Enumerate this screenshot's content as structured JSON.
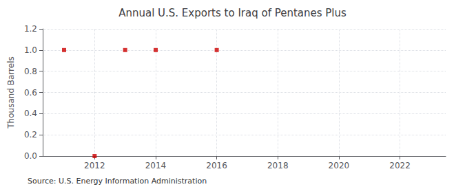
{
  "chart_data": {
    "type": "scatter",
    "title": "Annual U.S. Exports to Iraq of Pentanes Plus",
    "ylabel": "Thousand Barrels",
    "annotation": "Source: U.S. Energy Information Administration",
    "x": [
      2011,
      2012,
      2013,
      2014,
      2016
    ],
    "values": [
      1.0,
      0.0,
      1.0,
      1.0,
      1.0
    ],
    "color": "#CC0000",
    "marker": "square",
    "xlim": [
      2010.3,
      2023.5
    ],
    "xticks": [
      2012,
      2014,
      2016,
      2018,
      2020,
      2022
    ],
    "ylim": [
      0.0,
      1.2
    ],
    "yticks": [
      {
        "value": 0,
        "label": "0.0"
      },
      0.2,
      0.4,
      0.6,
      0.8,
      {
        "value": 1,
        "label": "1.0"
      },
      1.2
    ],
    "grid": true
  }
}
